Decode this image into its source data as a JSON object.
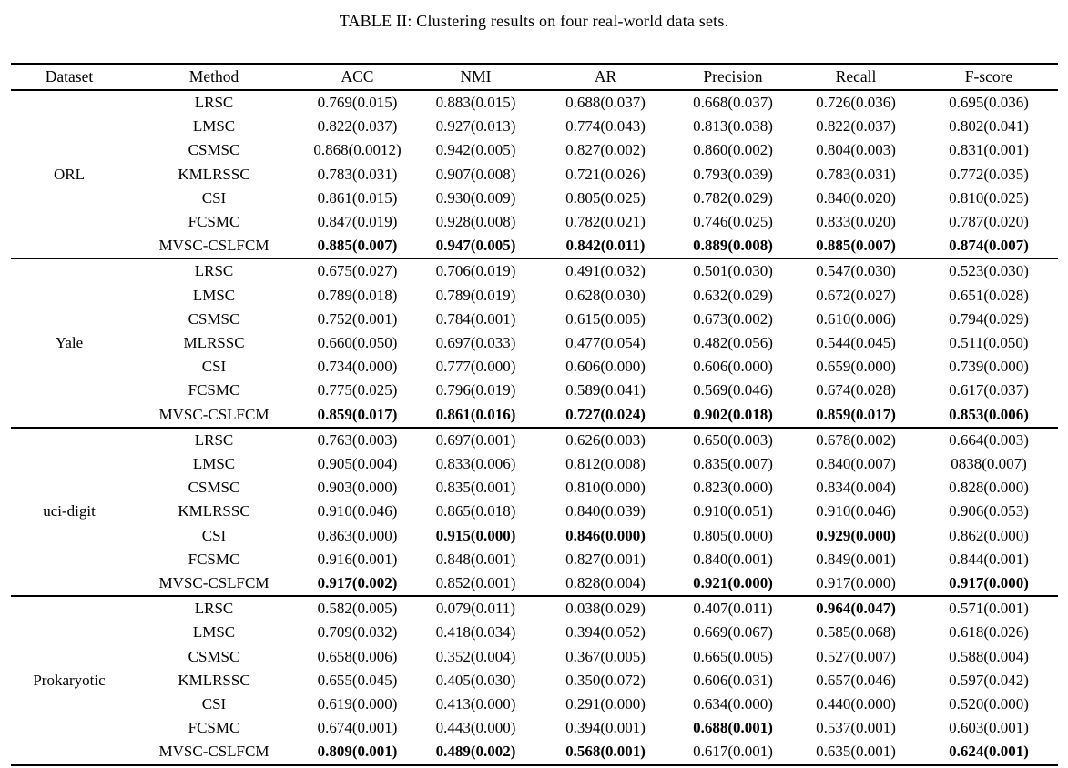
{
  "title": "TABLE II: Clustering results on four real-world data sets.",
  "table": {
    "columns": [
      "Dataset",
      "Method",
      "ACC",
      "NMI",
      "AR",
      "Precision",
      "Recall",
      "F-score"
    ],
    "sections": [
      {
        "dataset": "ORL",
        "rows": [
          {
            "method": "LRSC",
            "values": [
              "0.769(0.015)",
              "0.883(0.015)",
              "0.688(0.037)",
              "0.668(0.037)",
              "0.726(0.036)",
              "0.695(0.036)"
            ],
            "bold_cols": []
          },
          {
            "method": "LMSC",
            "values": [
              "0.822(0.037)",
              "0.927(0.013)",
              "0.774(0.043)",
              "0.813(0.038)",
              "0.822(0.037)",
              "0.802(0.041)"
            ],
            "bold_cols": []
          },
          {
            "method": "CSMSC",
            "values": [
              "0.868(0.0012)",
              "0.942(0.005)",
              "0.827(0.002)",
              "0.860(0.002)",
              "0.804(0.003)",
              "0.831(0.001)"
            ],
            "bold_cols": []
          },
          {
            "method": "KMLRSSC",
            "values": [
              "0.783(0.031)",
              "0.907(0.008)",
              "0.721(0.026)",
              "0.793(0.039)",
              "0.783(0.031)",
              "0.772(0.035)"
            ],
            "bold_cols": []
          },
          {
            "method": "CSI",
            "values": [
              "0.861(0.015)",
              "0.930(0.009)",
              "0.805(0.025)",
              "0.782(0.029)",
              "0.840(0.020)",
              "0.810(0.025)"
            ],
            "bold_cols": []
          },
          {
            "method": "FCSMC",
            "values": [
              "0.847(0.019)",
              "0.928(0.008)",
              "0.782(0.021)",
              "0.746(0.025)",
              "0.833(0.020)",
              "0.787(0.020)"
            ],
            "bold_cols": []
          },
          {
            "method": "MVSC-CSLFCM",
            "values": [
              "0.885(0.007)",
              "0.947(0.005)",
              "0.842(0.011)",
              "0.889(0.008)",
              "0.885(0.007)",
              "0.874(0.007)"
            ],
            "bold_cols": [
              0,
              1,
              2,
              3,
              4,
              5
            ]
          }
        ]
      },
      {
        "dataset": "Yale",
        "rows": [
          {
            "method": "LRSC",
            "values": [
              "0.675(0.027)",
              "0.706(0.019)",
              "0.491(0.032)",
              "0.501(0.030)",
              "0.547(0.030)",
              "0.523(0.030)"
            ],
            "bold_cols": []
          },
          {
            "method": "LMSC",
            "values": [
              "0.789(0.018)",
              "0.789(0.019)",
              "0.628(0.030)",
              "0.632(0.029)",
              "0.672(0.027)",
              "0.651(0.028)"
            ],
            "bold_cols": []
          },
          {
            "method": "CSMSC",
            "values": [
              "0.752(0.001)",
              "0.784(0.001)",
              "0.615(0.005)",
              "0.673(0.002)",
              "0.610(0.006)",
              "0.794(0.029)"
            ],
            "bold_cols": []
          },
          {
            "method": "MLRSSC",
            "values": [
              "0.660(0.050)",
              "0.697(0.033)",
              "0.477(0.054)",
              "0.482(0.056)",
              "0.544(0.045)",
              "0.511(0.050)"
            ],
            "bold_cols": []
          },
          {
            "method": "CSI",
            "values": [
              "0.734(0.000)",
              "0.777(0.000)",
              "0.606(0.000)",
              "0.606(0.000)",
              "0.659(0.000)",
              "0.739(0.000)"
            ],
            "bold_cols": []
          },
          {
            "method": "FCSMC",
            "values": [
              "0.775(0.025)",
              "0.796(0.019)",
              "0.589(0.041)",
              "0.569(0.046)",
              "0.674(0.028)",
              "0.617(0.037)"
            ],
            "bold_cols": []
          },
          {
            "method": "MVSC-CSLFCM",
            "values": [
              "0.859(0.017)",
              "0.861(0.016)",
              "0.727(0.024)",
              "0.902(0.018)",
              "0.859(0.017)",
              "0.853(0.006)"
            ],
            "bold_cols": [
              0,
              1,
              2,
              3,
              4,
              5
            ]
          }
        ]
      },
      {
        "dataset": "uci-digit",
        "rows": [
          {
            "method": "LRSC",
            "values": [
              "0.763(0.003)",
              "0.697(0.001)",
              "0.626(0.003)",
              "0.650(0.003)",
              "0.678(0.002)",
              "0.664(0.003)"
            ],
            "bold_cols": []
          },
          {
            "method": "LMSC",
            "values": [
              "0.905(0.004)",
              "0.833(0.006)",
              "0.812(0.008)",
              "0.835(0.007)",
              "0.840(0.007)",
              "0838(0.007)"
            ],
            "bold_cols": []
          },
          {
            "method": "CSMSC",
            "values": [
              "0.903(0.000)",
              "0.835(0.001)",
              "0.810(0.000)",
              "0.823(0.000)",
              "0.834(0.004)",
              "0.828(0.000)"
            ],
            "bold_cols": []
          },
          {
            "method": "KMLRSSC",
            "values": [
              "0.910(0.046)",
              "0.865(0.018)",
              "0.840(0.039)",
              "0.910(0.051)",
              "0.910(0.046)",
              "0.906(0.053)"
            ],
            "bold_cols": []
          },
          {
            "method": "CSI",
            "values": [
              "0.863(0.000)",
              "0.915(0.000)",
              "0.846(0.000)",
              "0.805(0.000)",
              "0.929(0.000)",
              "0.862(0.000)"
            ],
            "bold_cols": [
              1,
              2,
              4
            ]
          },
          {
            "method": "FCSMC",
            "values": [
              "0.916(0.001)",
              "0.848(0.001)",
              "0.827(0.001)",
              "0.840(0.001)",
              "0.849(0.001)",
              "0.844(0.001)"
            ],
            "bold_cols": []
          },
          {
            "method": "MVSC-CSLFCM",
            "values": [
              "0.917(0.002)",
              "0.852(0.001)",
              "0.828(0.004)",
              "0.921(0.000)",
              "0.917(0.000)",
              "0.917(0.000)"
            ],
            "bold_cols": [
              0,
              3,
              5
            ]
          }
        ]
      },
      {
        "dataset": "Prokaryotic",
        "rows": [
          {
            "method": "LRSC",
            "values": [
              "0.582(0.005)",
              "0.079(0.011)",
              "0.038(0.029)",
              "0.407(0.011)",
              "0.964(0.047)",
              "0.571(0.001)"
            ],
            "bold_cols": [
              4
            ]
          },
          {
            "method": "LMSC",
            "values": [
              "0.709(0.032)",
              "0.418(0.034)",
              "0.394(0.052)",
              "0.669(0.067)",
              "0.585(0.068)",
              "0.618(0.026)"
            ],
            "bold_cols": []
          },
          {
            "method": "CSMSC",
            "values": [
              "0.658(0.006)",
              "0.352(0.004)",
              "0.367(0.005)",
              "0.665(0.005)",
              "0.527(0.007)",
              "0.588(0.004)"
            ],
            "bold_cols": []
          },
          {
            "method": "KMLRSSC",
            "values": [
              "0.655(0.045)",
              "0.405(0.030)",
              "0.350(0.072)",
              "0.606(0.031)",
              "0.657(0.046)",
              "0.597(0.042)"
            ],
            "bold_cols": []
          },
          {
            "method": "CSI",
            "values": [
              "0.619(0.000)",
              "0.413(0.000)",
              "0.291(0.000)",
              "0.634(0.000)",
              "0.440(0.000)",
              "0.520(0.000)"
            ],
            "bold_cols": []
          },
          {
            "method": "FCSMC",
            "values": [
              "0.674(0.001)",
              "0.443(0.000)",
              "0.394(0.001)",
              "0.688(0.001)",
              "0.537(0.001)",
              "0.603(0.001)"
            ],
            "bold_cols": [
              3
            ]
          },
          {
            "method": "MVSC-CSLFCM",
            "values": [
              "0.809(0.001)",
              "0.489(0.002)",
              "0.568(0.001)",
              "0.617(0.001)",
              "0.635(0.001)",
              "0.624(0.001)"
            ],
            "bold_cols": [
              0,
              1,
              2,
              5
            ]
          }
        ]
      }
    ]
  }
}
